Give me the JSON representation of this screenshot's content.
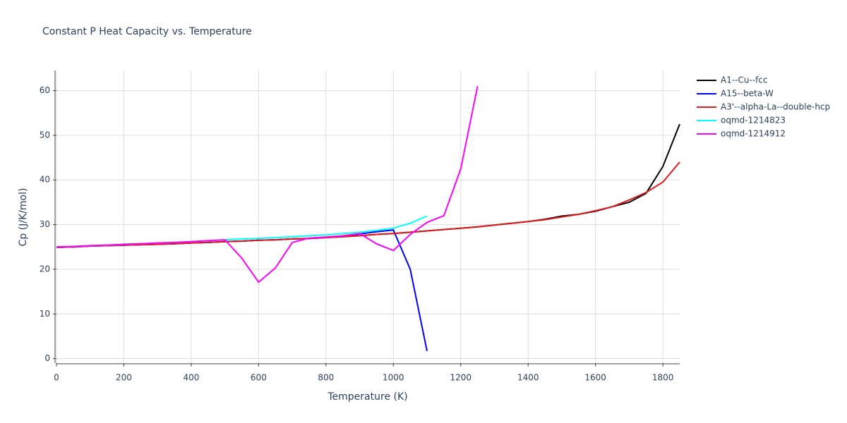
{
  "chart_data": {
    "type": "line",
    "title": "Constant P Heat Capacity vs. Temperature",
    "x_label": "Temperature (K)",
    "y_label": "Cp (J/K/mol)",
    "xlim": [
      0,
      1850
    ],
    "ylim": [
      -1,
      64.5
    ],
    "xticks": [
      0,
      200,
      400,
      600,
      800,
      1000,
      1200,
      1400,
      1600,
      1800
    ],
    "yticks": [
      0,
      10,
      20,
      30,
      40,
      50,
      60
    ],
    "grid": true,
    "legend": "outside-right",
    "series": [
      {
        "name": "A1--Cu--fcc",
        "color": "#000000",
        "x": [
          0,
          50,
          100,
          150,
          200,
          250,
          300,
          350,
          400,
          450,
          500,
          550,
          600,
          650,
          700,
          750,
          800,
          850,
          900,
          950,
          1000,
          1050,
          1100,
          1150,
          1200,
          1250,
          1300,
          1350,
          1400,
          1450,
          1500,
          1550,
          1600,
          1650,
          1700,
          1750,
          1800,
          1850
        ],
        "values": [
          24.9,
          25.0,
          25.2,
          25.3,
          25.4,
          25.5,
          25.6,
          25.7,
          25.9,
          26.0,
          26.2,
          26.3,
          26.5,
          26.6,
          26.8,
          26.9,
          27.1,
          27.3,
          27.5,
          27.8,
          28.0,
          28.3,
          28.6,
          28.9,
          29.2,
          29.5,
          29.9,
          30.3,
          30.7,
          31.2,
          31.9,
          32.3,
          33.0,
          34.0,
          35.0,
          37.0,
          43.0,
          52.5
        ]
      },
      {
        "name": "A15--beta-W",
        "color": "#0000ff",
        "x": [
          0,
          50,
          100,
          150,
          200,
          250,
          300,
          350,
          400,
          450,
          500,
          550,
          600,
          650,
          700,
          750,
          800,
          850,
          900,
          950,
          1000,
          1050,
          1100
        ],
        "values": [
          24.9,
          25.0,
          25.2,
          25.3,
          25.4,
          25.5,
          25.6,
          25.7,
          25.9,
          26.0,
          26.2,
          26.3,
          26.5,
          26.6,
          26.8,
          26.9,
          27.1,
          27.4,
          27.9,
          28.4,
          28.8,
          20.0,
          1.7
        ]
      },
      {
        "name": "A3'--alpha-La--double-hcp",
        "color": "#e31a1c",
        "x": [
          0,
          50,
          100,
          150,
          200,
          250,
          300,
          350,
          400,
          450,
          500,
          550,
          600,
          650,
          700,
          750,
          800,
          850,
          900,
          950,
          1000,
          1050,
          1100,
          1150,
          1200,
          1250,
          1300,
          1350,
          1400,
          1450,
          1500,
          1550,
          1600,
          1650,
          1700,
          1750,
          1800,
          1850
        ],
        "values": [
          24.9,
          25.0,
          25.2,
          25.3,
          25.4,
          25.5,
          25.6,
          25.7,
          25.9,
          26.0,
          26.2,
          26.3,
          26.5,
          26.6,
          26.8,
          26.9,
          27.1,
          27.3,
          27.5,
          27.8,
          28.0,
          28.3,
          28.6,
          28.9,
          29.2,
          29.5,
          29.9,
          30.3,
          30.7,
          31.1,
          31.7,
          32.3,
          33.1,
          34.0,
          35.5,
          37.2,
          39.5,
          44.0
        ]
      },
      {
        "name": "oqmd-1214823",
        "color": "#00ffff",
        "x": [
          0,
          50,
          100,
          150,
          200,
          250,
          300,
          350,
          400,
          450,
          500,
          550,
          600,
          650,
          700,
          750,
          800,
          850,
          900,
          950,
          1000,
          1050,
          1100
        ],
        "values": [
          25.0,
          25.1,
          25.3,
          25.4,
          25.6,
          25.7,
          25.9,
          26.0,
          26.2,
          26.4,
          26.6,
          26.8,
          26.9,
          27.1,
          27.3,
          27.5,
          27.7,
          28.0,
          28.3,
          28.7,
          29.2,
          30.3,
          31.9
        ]
      },
      {
        "name": "oqmd-1214912",
        "color": "#ff00ff",
        "x": [
          0,
          50,
          100,
          150,
          200,
          250,
          300,
          350,
          400,
          450,
          500,
          550,
          600,
          650,
          700,
          750,
          800,
          850,
          900,
          950,
          1000,
          1050,
          1100,
          1150,
          1200,
          1250
        ],
        "values": [
          25.0,
          25.1,
          25.3,
          25.4,
          25.6,
          25.7,
          25.9,
          26.0,
          26.2,
          26.4,
          26.6,
          22.5,
          17.1,
          20.3,
          26.0,
          27.0,
          27.2,
          27.5,
          28.0,
          25.7,
          24.2,
          27.8,
          30.5,
          32.0,
          42.5,
          61.0
        ]
      }
    ]
  }
}
